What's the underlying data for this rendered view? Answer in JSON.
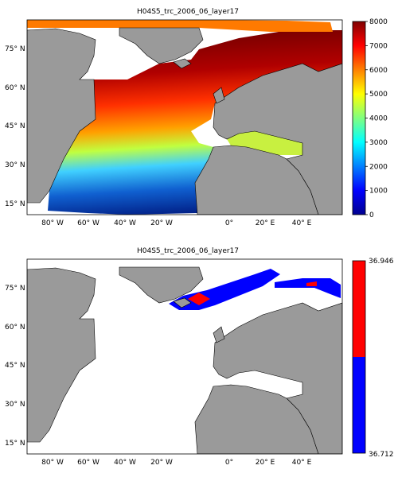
{
  "panels": [
    {
      "title": "H04S5_trc_2006_06_layer17",
      "colorbar": {
        "type": "continuous",
        "ticks": [
          "0",
          "1000",
          "2000",
          "3000",
          "4000",
          "5000",
          "6000",
          "7000",
          "8000"
        ],
        "range": [
          0,
          8000
        ]
      }
    },
    {
      "title": "H04S5_trc_2006_06_layer17",
      "colorbar": {
        "type": "binary",
        "max_label": "36.946",
        "min_label": "36.712",
        "colors": [
          "#ff0000",
          "#0000ff"
        ]
      }
    }
  ],
  "axes": {
    "lat_ticks": [
      "75",
      "60",
      "45",
      "30",
      "15"
    ],
    "lat_suffix": "N",
    "lon_ticks": [
      "80",
      "60",
      "40",
      "20",
      "0",
      "20",
      "40"
    ],
    "lon_suffixes": [
      "W",
      "W",
      "W",
      "W",
      "",
      "E",
      "E"
    ]
  },
  "colors": {
    "land": "#9a9a9a",
    "ocean_none": "#ffffff"
  }
}
